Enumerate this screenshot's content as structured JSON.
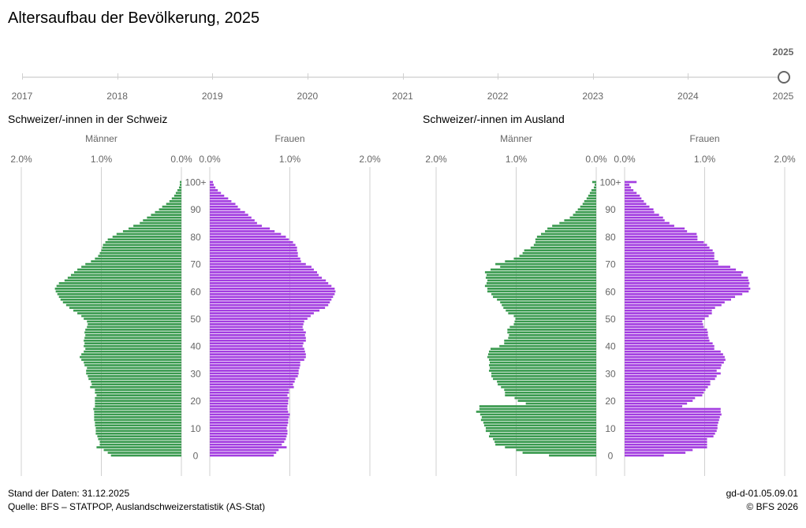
{
  "title": "Altersaufbau der Bevölkerung, 2025",
  "timeline": {
    "years": [
      "2017",
      "2018",
      "2019",
      "2020",
      "2021",
      "2022",
      "2023",
      "2024",
      "2025"
    ],
    "selected": "2025"
  },
  "footer": {
    "stand": "Stand der Daten: 31.12.2025",
    "quelle": "Quelle: BFS – STATPOP, Auslandschweizerstatistik (AS-Stat)",
    "code": "gd-d-01.05.09.01",
    "copyright": "© BFS 2026"
  },
  "colors": {
    "men": "#3a9a4f",
    "women": "#a33de0"
  },
  "chart_data": [
    {
      "type": "bar",
      "title": "Schweizer/-innen in der Schweiz",
      "left_label": "Männer",
      "right_label": "Frauen",
      "x_ticks": [
        "2.0%",
        "1.0%",
        "0.0%"
      ],
      "xlim": [
        0,
        2.0
      ],
      "age_ticks": [
        "0",
        "10",
        "20",
        "30",
        "40",
        "50",
        "60",
        "70",
        "80",
        "90",
        "100+"
      ],
      "categories_note": "age 0 to 100+",
      "series": [
        {
          "name": "Männer",
          "values": [
            0.88,
            0.92,
            0.97,
            1.06,
            1.02,
            1.02,
            1.04,
            1.05,
            1.07,
            1.07,
            1.07,
            1.08,
            1.08,
            1.09,
            1.09,
            1.09,
            1.09,
            1.1,
            1.08,
            1.08,
            1.08,
            1.08,
            1.06,
            1.08,
            1.08,
            1.14,
            1.12,
            1.13,
            1.16,
            1.17,
            1.19,
            1.19,
            1.18,
            1.21,
            1.22,
            1.25,
            1.27,
            1.25,
            1.22,
            1.2,
            1.22,
            1.21,
            1.22,
            1.21,
            1.2,
            1.21,
            1.2,
            1.18,
            1.17,
            1.18,
            1.22,
            1.25,
            1.3,
            1.35,
            1.4,
            1.44,
            1.48,
            1.51,
            1.53,
            1.55,
            1.57,
            1.58,
            1.56,
            1.53,
            1.46,
            1.42,
            1.38,
            1.34,
            1.3,
            1.25,
            1.2,
            1.13,
            1.08,
            1.04,
            1.02,
            1.0,
            0.99,
            0.98,
            0.95,
            0.92,
            0.86,
            0.81,
            0.73,
            0.66,
            0.6,
            0.52,
            0.48,
            0.43,
            0.38,
            0.33,
            0.28,
            0.24,
            0.19,
            0.15,
            0.12,
            0.09,
            0.07,
            0.05,
            0.03,
            0.02,
            0.02
          ]
        },
        {
          "name": "Frauen",
          "values": [
            0.8,
            0.83,
            0.86,
            0.96,
            0.9,
            0.93,
            0.95,
            0.96,
            0.97,
            0.97,
            0.96,
            0.97,
            0.98,
            0.98,
            0.99,
            1.0,
            0.98,
            0.97,
            0.97,
            0.98,
            0.98,
            0.99,
            0.97,
            0.99,
            0.99,
            1.05,
            1.04,
            1.06,
            1.07,
            1.1,
            1.11,
            1.11,
            1.12,
            1.13,
            1.13,
            1.18,
            1.2,
            1.2,
            1.19,
            1.18,
            1.16,
            1.17,
            1.2,
            1.2,
            1.19,
            1.2,
            1.17,
            1.16,
            1.17,
            1.18,
            1.22,
            1.26,
            1.3,
            1.37,
            1.44,
            1.48,
            1.5,
            1.52,
            1.54,
            1.56,
            1.57,
            1.56,
            1.52,
            1.48,
            1.45,
            1.4,
            1.36,
            1.34,
            1.3,
            1.27,
            1.2,
            1.14,
            1.13,
            1.1,
            1.1,
            1.09,
            1.09,
            1.07,
            1.04,
            0.99,
            0.95,
            0.89,
            0.81,
            0.75,
            0.65,
            0.59,
            0.56,
            0.52,
            0.48,
            0.44,
            0.38,
            0.35,
            0.32,
            0.27,
            0.23,
            0.18,
            0.14,
            0.1,
            0.07,
            0.05,
            0.04
          ]
        }
      ]
    },
    {
      "type": "bar",
      "title": "Schweizer/-innen im Ausland",
      "left_label": "Männer",
      "right_label": "Frauen",
      "x_ticks": [
        "2.0%",
        "1.0%",
        "0.0%"
      ],
      "xlim": [
        0,
        2.0
      ],
      "age_ticks": [
        "0",
        "10",
        "20",
        "30",
        "40",
        "50",
        "60",
        "70",
        "80",
        "90",
        "100+"
      ],
      "categories_note": "age 0 to 100+",
      "series": [
        {
          "name": "Männer",
          "values": [
            0.59,
            0.92,
            1.0,
            1.14,
            1.26,
            1.27,
            1.29,
            1.34,
            1.33,
            1.38,
            1.38,
            1.4,
            1.41,
            1.44,
            1.43,
            1.45,
            1.5,
            1.46,
            1.46,
            0.88,
            0.98,
            1.02,
            1.14,
            1.14,
            1.15,
            1.19,
            1.23,
            1.24,
            1.29,
            1.31,
            1.31,
            1.34,
            1.33,
            1.34,
            1.33,
            1.34,
            1.36,
            1.35,
            1.34,
            1.32,
            1.21,
            1.15,
            1.15,
            1.1,
            1.09,
            1.11,
            1.11,
            1.08,
            1.03,
            1.02,
            1.01,
            1.03,
            1.1,
            1.13,
            1.16,
            1.18,
            1.2,
            1.24,
            1.29,
            1.31,
            1.36,
            1.36,
            1.39,
            1.37,
            1.36,
            1.38,
            1.37,
            1.39,
            1.32,
            1.2,
            1.26,
            1.14,
            1.03,
            0.96,
            0.92,
            0.9,
            0.82,
            0.78,
            0.76,
            0.76,
            0.74,
            0.69,
            0.64,
            0.61,
            0.55,
            0.46,
            0.4,
            0.33,
            0.29,
            0.26,
            0.23,
            0.2,
            0.17,
            0.15,
            0.12,
            0.1,
            0.08,
            0.06,
            0.03,
            0.02,
            0.05
          ]
        },
        {
          "name": "Frauen",
          "values": [
            0.49,
            0.76,
            0.85,
            1.03,
            1.03,
            1.03,
            1.03,
            1.11,
            1.13,
            1.15,
            1.16,
            1.16,
            1.17,
            1.18,
            1.19,
            1.21,
            1.2,
            1.2,
            0.72,
            0.78,
            0.85,
            0.88,
            0.97,
            0.99,
            1.01,
            1.04,
            1.07,
            1.07,
            1.13,
            1.15,
            1.2,
            1.15,
            1.2,
            1.21,
            1.24,
            1.26,
            1.25,
            1.23,
            1.2,
            1.12,
            1.12,
            1.1,
            1.06,
            1.05,
            1.04,
            1.04,
            1.03,
            0.99,
            0.98,
            0.97,
            1.0,
            1.05,
            1.09,
            1.09,
            1.13,
            1.21,
            1.25,
            1.33,
            1.38,
            1.47,
            1.55,
            1.57,
            1.55,
            1.56,
            1.55,
            1.54,
            1.46,
            1.48,
            1.39,
            1.32,
            1.17,
            1.17,
            1.12,
            1.12,
            1.12,
            1.1,
            1.06,
            1.03,
            0.99,
            0.91,
            0.91,
            0.9,
            0.78,
            0.75,
            0.62,
            0.56,
            0.5,
            0.48,
            0.43,
            0.37,
            0.36,
            0.31,
            0.27,
            0.24,
            0.21,
            0.19,
            0.15,
            0.11,
            0.08,
            0.06,
            0.15
          ]
        }
      ]
    }
  ]
}
